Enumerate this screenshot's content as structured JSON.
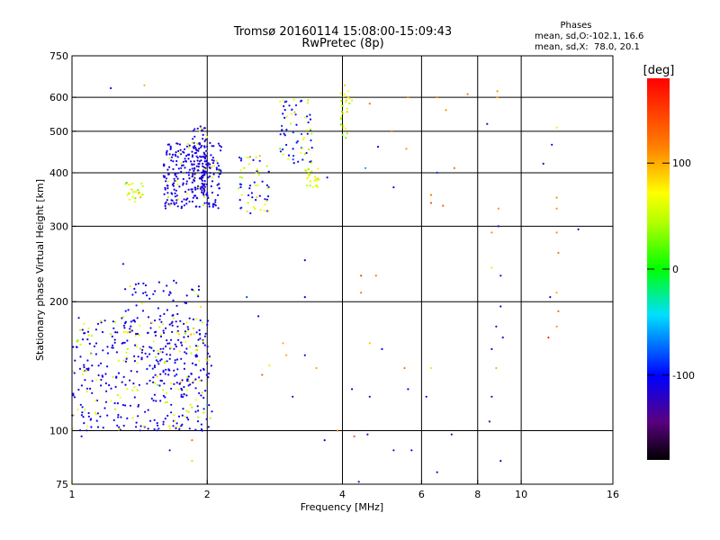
{
  "title": "Tromsø 20160114 15:08:00-15:09:43",
  "subtitle": "RwPretec (8p)",
  "legend": {
    "header": "Phases",
    "line1": "mean, sd,O:-102.1, 16.6",
    "line2": "mean, sd,X:  78.0, 20.1"
  },
  "colorbar": {
    "label": "[deg]",
    "ticks": [
      {
        "label": "100",
        "value": 100
      },
      {
        "label": "0",
        "value": 0
      },
      {
        "label": "-100",
        "value": -100
      }
    ],
    "range": [
      -180,
      180
    ]
  },
  "chart_data": {
    "type": "scatter",
    "xlabel": "Frequency [MHz]",
    "ylabel": "Stationary phase Virtual Height [km]",
    "xscale": "log",
    "yscale": "log",
    "xlim": [
      1,
      16
    ],
    "ylim": [
      75,
      750
    ],
    "grid": true,
    "xticks": [
      {
        "v": 1,
        "l": "1"
      },
      {
        "v": 2,
        "l": "2"
      },
      {
        "v": 4,
        "l": "4"
      },
      {
        "v": 6,
        "l": "6"
      },
      {
        "v": 8,
        "l": "8"
      },
      {
        "v": 10,
        "l": "10"
      },
      {
        "v": 16,
        "l": "16"
      }
    ],
    "yticks": [
      {
        "v": 75,
        "l": "75"
      },
      {
        "v": 100,
        "l": "100"
      },
      {
        "v": 200,
        "l": "200"
      },
      {
        "v": 300,
        "l": "300"
      },
      {
        "v": 400,
        "l": "400"
      },
      {
        "v": 500,
        "l": "500"
      },
      {
        "v": 600,
        "l": "600"
      },
      {
        "v": 750,
        "l": "750"
      }
    ],
    "gridlines_x": [
      2,
      4,
      6,
      8,
      10
    ],
    "gridlines_y": [
      100,
      200,
      300,
      400,
      500,
      600
    ],
    "clusters": [
      {
        "x": [
          1.0,
          2.05
        ],
        "y": [
          100,
          185
        ],
        "phase": -110,
        "spread": 18,
        "n": 420,
        "mix": 0.22
      },
      {
        "x": [
          1.3,
          1.95
        ],
        "y": [
          125,
          225
        ],
        "phase": -105,
        "spread": 18,
        "n": 120,
        "mix": 0.15
      },
      {
        "x": [
          1.6,
          2.15
        ],
        "y": [
          330,
          470
        ],
        "phase": -110,
        "spread": 12,
        "n": 260,
        "mix": 0.1
      },
      {
        "x": [
          1.85,
          2.0
        ],
        "y": [
          360,
          520
        ],
        "phase": -115,
        "spread": 10,
        "n": 90,
        "mix": 0.05
      },
      {
        "x": [
          2.35,
          2.75
        ],
        "y": [
          320,
          440
        ],
        "phase": -100,
        "spread": 25,
        "n": 60,
        "mix": 0.35
      },
      {
        "x": [
          1.3,
          1.45
        ],
        "y": [
          340,
          380
        ],
        "phase": 40,
        "spread": 60,
        "n": 25,
        "mix": 0.8
      },
      {
        "x": [
          2.9,
          3.45
        ],
        "y": [
          420,
          600
        ],
        "phase": -100,
        "spread": 25,
        "n": 70,
        "mix": 0.25
      },
      {
        "x": [
          3.3,
          3.55
        ],
        "y": [
          370,
          410
        ],
        "phase": 80,
        "spread": 20,
        "n": 25,
        "mix": 0.9
      },
      {
        "x": [
          3.95,
          4.15
        ],
        "y": [
          480,
          650
        ],
        "phase": 70,
        "spread": 25,
        "n": 25,
        "mix": 0.9
      }
    ],
    "scatter_points": [
      [
        1.45,
        640,
        100
      ],
      [
        1.22,
        630,
        -110
      ],
      [
        4.05,
        640,
        90
      ],
      [
        4.05,
        610,
        70
      ],
      [
        4.2,
        590,
        80
      ],
      [
        5.6,
        600,
        110
      ],
      [
        6.5,
        600,
        115
      ],
      [
        7.6,
        610,
        120
      ],
      [
        8.85,
        600,
        100
      ],
      [
        8.85,
        620,
        110
      ],
      [
        4.6,
        580,
        120
      ],
      [
        5.15,
        500,
        125
      ],
      [
        6.8,
        560,
        110
      ],
      [
        8.4,
        520,
        -110
      ],
      [
        12.0,
        510,
        60
      ],
      [
        4.8,
        460,
        -100
      ],
      [
        5.55,
        455,
        110
      ],
      [
        11.7,
        465,
        -110
      ],
      [
        7.1,
        410,
        130
      ],
      [
        4.5,
        410,
        -60
      ],
      [
        11.2,
        420,
        -120
      ],
      [
        6.3,
        340,
        140
      ],
      [
        5.2,
        370,
        -100
      ],
      [
        6.3,
        355,
        120
      ],
      [
        6.7,
        335,
        130
      ],
      [
        8.6,
        290,
        110
      ],
      [
        8.9,
        330,
        110
      ],
      [
        8.9,
        300,
        -120
      ],
      [
        8.6,
        240,
        80
      ],
      [
        9.0,
        230,
        -110
      ],
      [
        12.0,
        350,
        110
      ],
      [
        12.0,
        330,
        110
      ],
      [
        12.0,
        290,
        110
      ],
      [
        12.1,
        260,
        120
      ],
      [
        13.4,
        295,
        -130
      ],
      [
        12.0,
        210,
        100
      ],
      [
        11.6,
        205,
        -120
      ],
      [
        12.1,
        190,
        130
      ],
      [
        12.0,
        175,
        110
      ],
      [
        11.5,
        165,
        160
      ],
      [
        9.0,
        195,
        -120
      ],
      [
        8.8,
        175,
        -110
      ],
      [
        9.1,
        165,
        -100
      ],
      [
        8.6,
        155,
        -110
      ],
      [
        8.8,
        140,
        100
      ],
      [
        8.6,
        120,
        -120
      ],
      [
        9.0,
        85,
        -120
      ],
      [
        8.5,
        105,
        -130
      ],
      [
        7.0,
        98,
        -130
      ],
      [
        6.5,
        80,
        -120
      ],
      [
        6.3,
        140,
        80
      ],
      [
        6.15,
        120,
        -100
      ],
      [
        5.6,
        125,
        -110
      ],
      [
        4.9,
        155,
        -100
      ],
      [
        4.6,
        120,
        -120
      ],
      [
        4.2,
        125,
        -110
      ],
      [
        4.6,
        160,
        90
      ],
      [
        5.5,
        140,
        120
      ],
      [
        4.4,
        210,
        120
      ],
      [
        3.5,
        140,
        100
      ],
      [
        3.65,
        95,
        -110
      ],
      [
        3.3,
        150,
        -110
      ],
      [
        3.1,
        120,
        -120
      ],
      [
        2.95,
        160,
        100
      ],
      [
        3.0,
        150,
        100
      ],
      [
        2.75,
        142,
        80
      ],
      [
        2.65,
        135,
        130
      ],
      [
        2.6,
        185,
        -100
      ],
      [
        3.3,
        250,
        -110
      ],
      [
        3.3,
        205,
        -100
      ],
      [
        2.45,
        205,
        -80
      ],
      [
        2.0,
        115,
        -60
      ],
      [
        1.95,
        100,
        -110
      ],
      [
        1.85,
        95,
        120
      ],
      [
        1.65,
        90,
        -120
      ],
      [
        1.85,
        85,
        40
      ],
      [
        1.1,
        106,
        -110
      ],
      [
        1.05,
        97,
        -110
      ],
      [
        1.3,
        245,
        -100
      ],
      [
        1.0,
        76,
        60
      ],
      [
        5.2,
        90,
        -120
      ],
      [
        4.35,
        76,
        -120
      ],
      [
        4.55,
        98,
        -110
      ],
      [
        4.25,
        97,
        140
      ],
      [
        5.7,
        90,
        -100
      ],
      [
        3.9,
        100,
        120
      ],
      [
        3.7,
        390,
        -110
      ],
      [
        4.4,
        230,
        150
      ],
      [
        4.75,
        230,
        120
      ],
      [
        6.5,
        400,
        -90
      ]
    ]
  }
}
